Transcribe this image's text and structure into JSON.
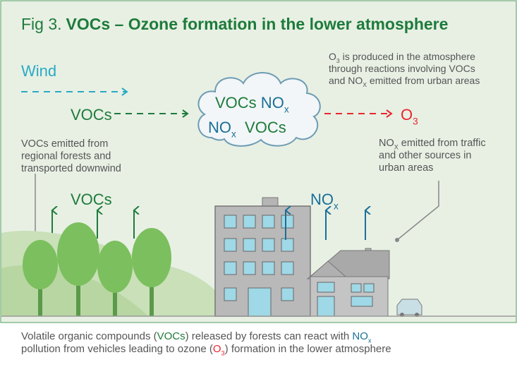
{
  "title": {
    "prefix": "Fig 3.",
    "main": "VOCs – Ozone formation in the lower atmosphere"
  },
  "wind": "Wind",
  "voc_flow": [
    [
      {
        "text": "VOCs"
      }
    ]
  ],
  "cloud_top": [
    [
      {
        "text": "VOCs",
        "color": "#1e7b3b"
      },
      {
        "text": " NO",
        "color": "#1a6f98"
      },
      {
        "sub": "x",
        "color": "#1a6f98"
      }
    ]
  ],
  "cloud_bottom": [
    [
      {
        "text": "NO",
        "color": "#1a6f98"
      },
      {
        "sub": "x",
        "color": "#1a6f98"
      },
      {
        "text": "  VOCs",
        "color": "#1e7b3b"
      }
    ]
  ],
  "ozone": [
    [
      {
        "text": "O"
      },
      {
        "sub": "3"
      }
    ]
  ],
  "ozone_note": [
    [
      {
        "text": "O"
      },
      {
        "sub": "3"
      },
      {
        "text": " is produced in the atmosphere"
      }
    ],
    [
      {
        "text": "through reactions involving VOCs"
      }
    ],
    [
      {
        "text": "and NO"
      },
      {
        "sub": "X"
      },
      {
        "text": " emitted from urban areas"
      }
    ]
  ],
  "forest_note": [
    [
      {
        "text": "VOCs emitted from"
      }
    ],
    [
      {
        "text": "regional forests and"
      }
    ],
    [
      {
        "text": "transported downwind"
      }
    ]
  ],
  "urban_note": [
    [
      {
        "text": "NO"
      },
      {
        "sub": "X"
      },
      {
        "text": " emitted from traffic"
      }
    ],
    [
      {
        "text": "and other sources in"
      }
    ],
    [
      {
        "text": "urban areas"
      }
    ]
  ],
  "forest_label": [
    [
      {
        "text": "VOCs"
      }
    ]
  ],
  "urban_label": [
    [
      {
        "text": "NO"
      },
      {
        "sub": "x"
      }
    ]
  ],
  "caption": [
    [
      {
        "text": "Volatile organic compounds ("
      },
      {
        "text": "VOCs",
        "color": "#1e7b3b"
      },
      {
        "text": ") released by forests can react with "
      },
      {
        "text": "NO",
        "color": "#1a6f98"
      },
      {
        "sub": "x",
        "color": "#1a6f98"
      }
    ],
    [
      {
        "text": "pollution from vehicles leading to ozone ("
      },
      {
        "text": "O",
        "color": "#e8262d"
      },
      {
        "sub": "3",
        "color": "#e8262d"
      },
      {
        "text": ") formation in the lower atmosphere"
      }
    ]
  ]
}
